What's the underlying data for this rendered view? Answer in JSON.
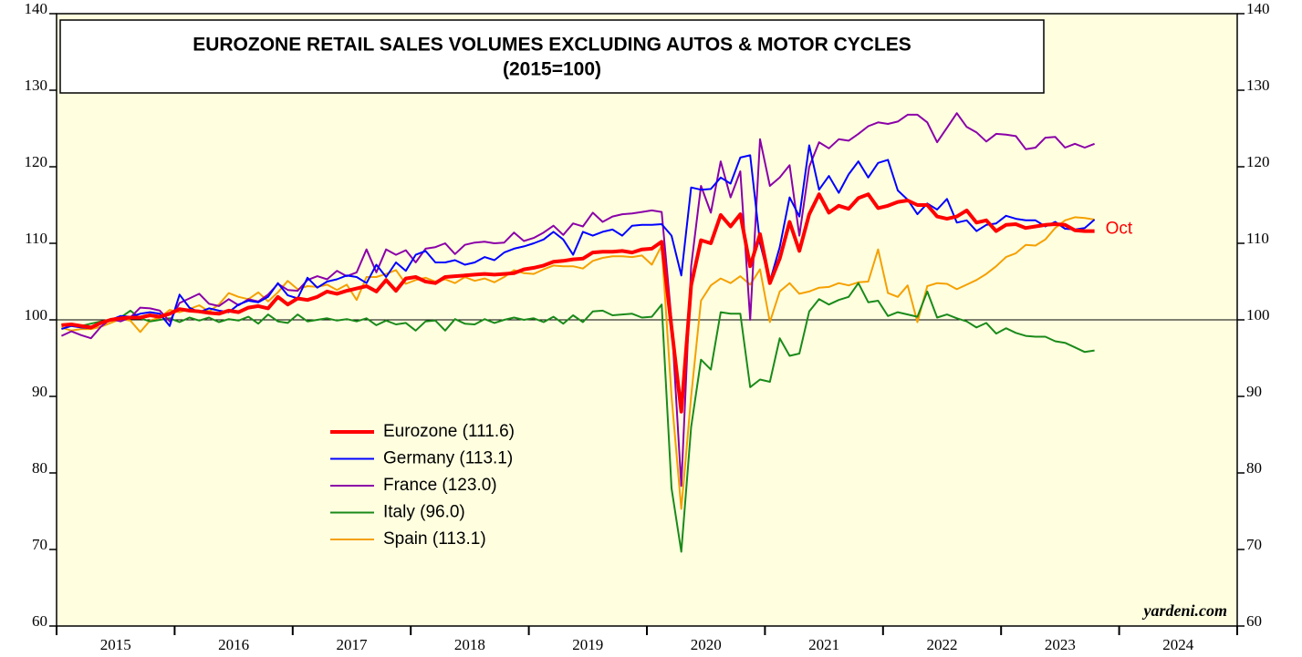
{
  "chart_data": {
    "type": "line",
    "title": "EUROZONE RETAIL SALES VOLUMES EXCLUDING AUTOS & MOTOR CYCLES",
    "subtitle": "(2015=100)",
    "annotations": [
      "Oct",
      "yardeni.com"
    ],
    "x": [
      "2015-01",
      "2015-02",
      "2015-03",
      "2015-04",
      "2015-05",
      "2015-06",
      "2015-07",
      "2015-08",
      "2015-09",
      "2015-10",
      "2015-11",
      "2015-12",
      "2016-01",
      "2016-02",
      "2016-03",
      "2016-04",
      "2016-05",
      "2016-06",
      "2016-07",
      "2016-08",
      "2016-09",
      "2016-10",
      "2016-11",
      "2016-12",
      "2017-01",
      "2017-02",
      "2017-03",
      "2017-04",
      "2017-05",
      "2017-06",
      "2017-07",
      "2017-08",
      "2017-09",
      "2017-10",
      "2017-11",
      "2017-12",
      "2018-01",
      "2018-02",
      "2018-03",
      "2018-04",
      "2018-05",
      "2018-06",
      "2018-07",
      "2018-08",
      "2018-09",
      "2018-10",
      "2018-11",
      "2018-12",
      "2019-01",
      "2019-02",
      "2019-03",
      "2019-04",
      "2019-05",
      "2019-06",
      "2019-07",
      "2019-08",
      "2019-09",
      "2019-10",
      "2019-11",
      "2019-12",
      "2020-01",
      "2020-02",
      "2020-03",
      "2020-04",
      "2020-05",
      "2020-06",
      "2020-07",
      "2020-08",
      "2020-09",
      "2020-10",
      "2020-11",
      "2020-12",
      "2021-01",
      "2021-02",
      "2021-03",
      "2021-04",
      "2021-05",
      "2021-06",
      "2021-07",
      "2021-08",
      "2021-09",
      "2021-10",
      "2021-11",
      "2021-12",
      "2022-01",
      "2022-02",
      "2022-03",
      "2022-04",
      "2022-05",
      "2022-06",
      "2022-07",
      "2022-08",
      "2022-09",
      "2022-10",
      "2022-11",
      "2022-12",
      "2023-01",
      "2023-02",
      "2023-03",
      "2023-04",
      "2023-05",
      "2023-06",
      "2023-07",
      "2023-08",
      "2023-09",
      "2023-10"
    ],
    "series": [
      {
        "name": "Eurozone (111.6)",
        "color": "#ff0000",
        "width": 4,
        "values": [
          99.3,
          99.4,
          99.2,
          99.0,
          99.6,
          100.0,
          100.2,
          100.3,
          100.3,
          100.6,
          100.4,
          100.8,
          101.4,
          101.2,
          101.1,
          100.9,
          100.8,
          101.2,
          101.0,
          101.6,
          101.8,
          101.5,
          103.0,
          102.0,
          102.8,
          102.6,
          103.0,
          103.7,
          103.4,
          103.8,
          104.1,
          104.4,
          103.7,
          105.2,
          103.8,
          105.4,
          105.6,
          105.0,
          104.8,
          105.6,
          105.7,
          105.8,
          105.9,
          106.0,
          105.9,
          106.0,
          106.1,
          106.6,
          106.8,
          107.1,
          107.6,
          107.7,
          107.9,
          108.0,
          108.8,
          108.9,
          108.9,
          109.0,
          108.8,
          109.2,
          109.3,
          110.2,
          99.0,
          88.0,
          104.5,
          110.4,
          110.0,
          113.7,
          112.2,
          113.8,
          107.0,
          111.2,
          104.8,
          108.0,
          112.8,
          109.0,
          113.8,
          116.4,
          114.0,
          114.9,
          114.5,
          115.9,
          116.4,
          114.6,
          114.9,
          115.4,
          115.6,
          115.0,
          115.0,
          113.5,
          113.2,
          113.5,
          114.3,
          112.7,
          113.0,
          111.6,
          112.4,
          112.5,
          112.0,
          112.2,
          112.4,
          112.5,
          112.4,
          111.7,
          111.6,
          111.6
        ]
      },
      {
        "name": "Germany (113.1)",
        "color": "#0000ff",
        "width": 2,
        "values": [
          98.8,
          99.2,
          99.0,
          98.9,
          99.5,
          100.0,
          100.5,
          100.4,
          100.8,
          101.0,
          100.8,
          99.2,
          103.3,
          101.6,
          101.0,
          101.5,
          101.2,
          101.0,
          102.0,
          102.5,
          102.3,
          103.0,
          104.8,
          103.2,
          102.8,
          105.5,
          104.2,
          105.0,
          105.3,
          105.8,
          105.6,
          104.8,
          107.2,
          105.6,
          107.5,
          106.4,
          108.5,
          109.0,
          107.5,
          107.5,
          107.8,
          107.2,
          107.5,
          108.2,
          107.8,
          108.8,
          109.3,
          109.6,
          110.0,
          110.5,
          111.5,
          110.5,
          108.5,
          111.5,
          111.0,
          111.5,
          111.8,
          111.0,
          112.3,
          112.4,
          112.4,
          112.5,
          111.0,
          105.8,
          117.3,
          117.0,
          117.1,
          118.6,
          117.8,
          121.2,
          121.5,
          110.0,
          105.0,
          109.5,
          116.0,
          113.5,
          122.8,
          117.0,
          118.8,
          116.6,
          119.0,
          120.7,
          118.6,
          120.5,
          120.9,
          116.9,
          115.7,
          113.8,
          115.2,
          114.4,
          115.8,
          112.7,
          113.0,
          111.6,
          112.4,
          112.6,
          113.6,
          113.2,
          113.0,
          113.0,
          112.2,
          112.8,
          111.9,
          111.8,
          112.0,
          113.1
        ]
      },
      {
        "name": "France (123.0)",
        "color": "#8b00a8",
        "width": 2,
        "values": [
          97.9,
          98.5,
          98.0,
          97.6,
          99.1,
          100.1,
          99.8,
          100.3,
          101.6,
          101.5,
          101.2,
          99.8,
          102.2,
          102.8,
          103.4,
          102.1,
          101.8,
          102.7,
          101.9,
          102.7,
          102.4,
          103.3,
          104.7,
          103.9,
          103.8,
          105.2,
          105.7,
          105.3,
          106.4,
          105.7,
          106.2,
          109.2,
          106.2,
          109.2,
          108.5,
          109.1,
          107.5,
          109.3,
          109.5,
          110.0,
          108.6,
          109.8,
          110.1,
          110.2,
          110.0,
          110.1,
          111.4,
          110.3,
          110.7,
          111.4,
          112.3,
          111.1,
          112.6,
          112.2,
          114.0,
          112.8,
          113.5,
          113.8,
          113.9,
          114.1,
          114.3,
          114.1,
          100.0,
          78.3,
          107.0,
          117.5,
          114.0,
          120.7,
          116.0,
          119.4,
          100.0,
          123.6,
          117.5,
          118.6,
          120.2,
          111.0,
          120.0,
          123.2,
          122.4,
          123.6,
          123.4,
          124.3,
          125.3,
          125.8,
          125.6,
          125.9,
          126.8,
          126.8,
          125.8,
          123.2,
          125.1,
          127.0,
          125.2,
          124.5,
          123.3,
          124.3,
          124.2,
          124.0,
          122.3,
          122.5,
          123.8,
          123.9,
          122.5,
          123.0,
          122.5,
          123.0
        ]
      },
      {
        "name": "Italy (96.0)",
        "color": "#1a8a1a",
        "width": 2,
        "values": [
          99.3,
          99.5,
          99.2,
          99.5,
          99.8,
          100.0,
          100.3,
          101.2,
          100.2,
          99.8,
          100.0,
          100.2,
          99.7,
          100.3,
          99.9,
          100.3,
          99.7,
          100.1,
          99.9,
          100.4,
          99.5,
          100.7,
          99.8,
          99.6,
          100.7,
          99.8,
          100.0,
          100.2,
          99.9,
          100.1,
          99.8,
          100.2,
          99.3,
          99.9,
          99.4,
          99.6,
          98.6,
          99.8,
          99.9,
          98.6,
          100.1,
          99.5,
          99.4,
          100.1,
          99.6,
          100.0,
          100.3,
          100.0,
          100.2,
          99.7,
          100.4,
          99.5,
          100.6,
          99.7,
          101.1,
          101.2,
          100.6,
          100.7,
          100.8,
          100.3,
          100.4,
          102.0,
          78.0,
          69.7,
          86.0,
          94.8,
          93.5,
          101.0,
          100.8,
          100.8,
          91.2,
          92.2,
          91.9,
          97.6,
          95.3,
          95.6,
          101.1,
          102.7,
          102.0,
          102.6,
          103.0,
          104.8,
          102.3,
          102.5,
          100.5,
          101.0,
          100.7,
          100.4,
          103.7,
          100.3,
          100.7,
          100.2,
          99.8,
          99.0,
          99.6,
          98.2,
          98.9,
          98.3,
          97.9,
          97.8,
          97.8,
          97.2,
          97.0,
          96.4,
          95.8,
          96.0
        ]
      },
      {
        "name": "Spain (113.1)",
        "color": "#f5a000",
        "width": 2,
        "values": [
          99.0,
          98.6,
          98.8,
          98.8,
          99.1,
          99.6,
          100.1,
          99.9,
          98.4,
          99.9,
          100.3,
          101.3,
          101.0,
          101.4,
          101.9,
          101.1,
          102.0,
          103.5,
          103.0,
          102.7,
          103.6,
          102.4,
          103.6,
          105.1,
          104.0,
          104.4,
          104.3,
          104.6,
          103.9,
          104.6,
          102.6,
          105.6,
          105.6,
          106.0,
          106.5,
          104.7,
          105.2,
          105.5,
          105.0,
          105.3,
          104.8,
          105.6,
          105.1,
          105.4,
          104.9,
          105.6,
          106.5,
          106.1,
          106.0,
          106.6,
          107.1,
          107.0,
          107.0,
          106.7,
          107.7,
          108.1,
          108.3,
          108.3,
          108.2,
          108.4,
          107.2,
          109.7,
          90.0,
          75.3,
          90.0,
          102.5,
          104.5,
          105.4,
          104.8,
          105.7,
          104.6,
          106.6,
          99.7,
          103.7,
          104.8,
          103.4,
          103.7,
          104.2,
          104.3,
          104.8,
          104.5,
          104.9,
          105.0,
          109.2,
          103.5,
          103.0,
          104.5,
          99.7,
          104.4,
          104.8,
          104.7,
          104.0,
          104.6,
          105.2,
          106.0,
          107.0,
          108.2,
          108.7,
          109.8,
          109.7,
          110.5,
          112.0,
          113.0,
          113.4,
          113.3,
          113.1
        ]
      }
    ],
    "xlim": [
      2015,
      2025
    ],
    "xticks": [
      2015,
      2016,
      2017,
      2018,
      2019,
      2020,
      2021,
      2022,
      2023,
      2024,
      2025
    ],
    "ylim": [
      60,
      140
    ],
    "yticks": [
      60,
      70,
      80,
      90,
      100,
      110,
      120,
      130,
      140
    ],
    "reference_line": 100,
    "legend": "lower-left",
    "background": "#ffffe0"
  }
}
